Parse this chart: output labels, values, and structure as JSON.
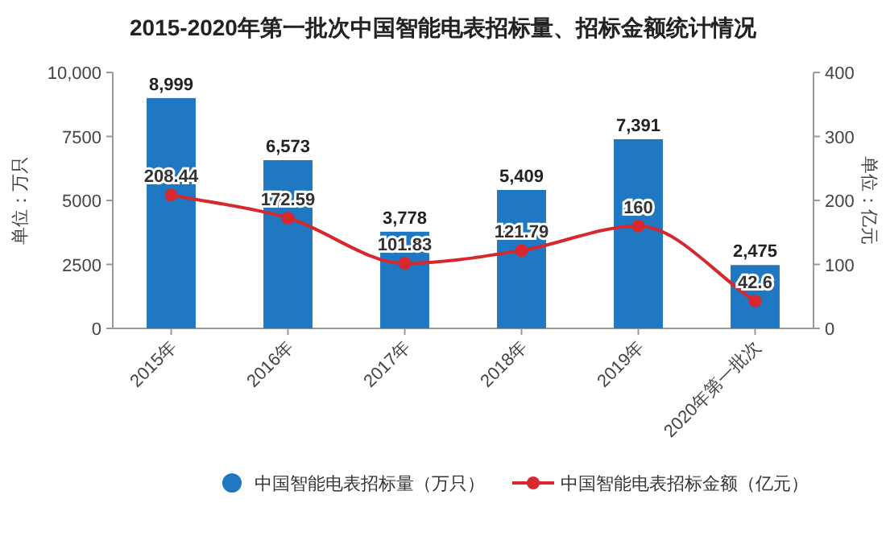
{
  "chart_data": {
    "type": "bar",
    "title": "2015-2020年第一批次中国智能电表招标量、招标金额统计情况",
    "categories": [
      "2015年",
      "2016年",
      "2017年",
      "2018年",
      "2019年",
      "2020年第一批次"
    ],
    "series": [
      {
        "name": "中国智能电表招标量（万只）",
        "color": "#1f78c1",
        "values": [
          8999,
          6573,
          3778,
          5409,
          7391,
          2475
        ],
        "value_labels": [
          "8,999",
          "6,573",
          "3,778",
          "5,409",
          "7,391",
          "2,475"
        ]
      },
      {
        "name": "中国智能电表招标金额（亿元）",
        "type": "line",
        "axis": "y2",
        "color": "#d7282f",
        "values": [
          208.44,
          172.59,
          101.83,
          121.79,
          160,
          42.6
        ]
      }
    ],
    "ylabel": "单位：万只",
    "y2label": "单位：亿元",
    "ylim": [
      0,
      10000
    ],
    "yticks": [
      0,
      2500,
      5000,
      7500,
      {
        "value": 10000,
        "label": "10,000"
      }
    ],
    "y2lim": [
      0,
      400
    ],
    "y2ticks": [
      0,
      100,
      200,
      300,
      400
    ],
    "data_labels": true,
    "legend": "bottom",
    "marker": "circle",
    "grid": false
  }
}
